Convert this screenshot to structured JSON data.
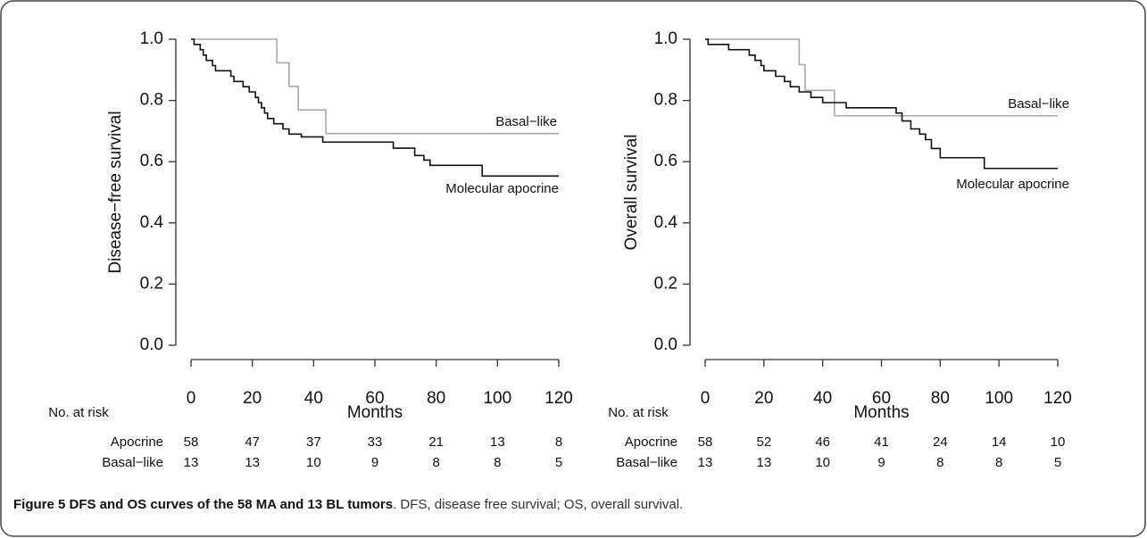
{
  "chart_data": [
    {
      "type": "step",
      "ylabel": "Disease−free survival",
      "xlabel": "Months",
      "xlim": [
        0,
        120
      ],
      "ylim": [
        0,
        1
      ],
      "xticks": [
        0,
        20,
        40,
        60,
        80,
        100,
        120
      ],
      "yticks": [
        {
          "value": 0,
          "label": "0.0"
        },
        {
          "value": 0.2,
          "label": "0.2"
        },
        {
          "value": 0.4,
          "label": "0.4"
        },
        {
          "value": 0.6,
          "label": "0.6"
        },
        {
          "value": 0.8,
          "label": "0.8"
        },
        {
          "value": 1,
          "label": "1.0"
        }
      ],
      "series": [
        {
          "name": "Basal−like",
          "color": "#aaaaaa",
          "x": [
            0,
            28,
            32,
            35,
            44,
            120
          ],
          "values": [
            1,
            0.923,
            0.846,
            0.769,
            0.692,
            0.692
          ]
        },
        {
          "name": "Molecular apocrine",
          "color": "#111111",
          "x": [
            0,
            1,
            3,
            4,
            5,
            7,
            8,
            13,
            14,
            17,
            19,
            21,
            22,
            23,
            24,
            25,
            27,
            30,
            32,
            36,
            43,
            66,
            73,
            76,
            78,
            95,
            120
          ],
          "values": [
            1,
            0.983,
            0.966,
            0.948,
            0.931,
            0.914,
            0.897,
            0.879,
            0.862,
            0.845,
            0.828,
            0.81,
            0.793,
            0.776,
            0.759,
            0.741,
            0.724,
            0.707,
            0.69,
            0.681,
            0.664,
            0.644,
            0.62,
            0.605,
            0.588,
            0.553,
            0.553
          ]
        }
      ],
      "risk_table": {
        "title": "No. at risk",
        "rows": [
          {
            "name": "Apocrine",
            "values": [
              58,
              47,
              37,
              33,
              21,
              13,
              8
            ]
          },
          {
            "name": "Basal−like",
            "values": [
              13,
              13,
              10,
              9,
              8,
              8,
              5
            ]
          }
        ]
      }
    },
    {
      "type": "step",
      "ylabel": "Overall survival",
      "xlabel": "Months",
      "xlim": [
        0,
        120
      ],
      "ylim": [
        0,
        1
      ],
      "xticks": [
        0,
        20,
        40,
        60,
        80,
        100,
        120
      ],
      "yticks": [
        {
          "value": 0,
          "label": "0.0"
        },
        {
          "value": 0.2,
          "label": "0.2"
        },
        {
          "value": 0.4,
          "label": "0.4"
        },
        {
          "value": 0.6,
          "label": "0.6"
        },
        {
          "value": 0.8,
          "label": "0.8"
        },
        {
          "value": 1,
          "label": "1.0"
        }
      ],
      "series": [
        {
          "name": "Basal−like",
          "color": "#aaaaaa",
          "x": [
            0,
            32,
            34,
            44,
            120
          ],
          "values": [
            1,
            0.917,
            0.833,
            0.75,
            0.75
          ]
        },
        {
          "name": "Molecular apocrine",
          "color": "#111111",
          "x": [
            0,
            1,
            8,
            15,
            17,
            19,
            20,
            24,
            27,
            29,
            32,
            36,
            40,
            48,
            65,
            67,
            70,
            73,
            75,
            77,
            80,
            95,
            120
          ],
          "values": [
            1,
            0.983,
            0.966,
            0.948,
            0.931,
            0.914,
            0.897,
            0.879,
            0.862,
            0.845,
            0.828,
            0.81,
            0.793,
            0.776,
            0.759,
            0.733,
            0.707,
            0.69,
            0.672,
            0.643,
            0.613,
            0.578,
            0.578
          ]
        }
      ],
      "risk_table": {
        "title": "No. at risk",
        "rows": [
          {
            "name": "Apocrine",
            "values": [
              58,
              52,
              46,
              41,
              24,
              14,
              10
            ]
          },
          {
            "name": "Basal−like",
            "values": [
              13,
              13,
              10,
              9,
              8,
              8,
              5
            ]
          }
        ]
      }
    }
  ],
  "caption": {
    "label": "Figure 5 DFS and OS curves of the 58 MA and 13 BL tumors",
    "text": ". DFS, disease free survival; OS, overall survival."
  }
}
